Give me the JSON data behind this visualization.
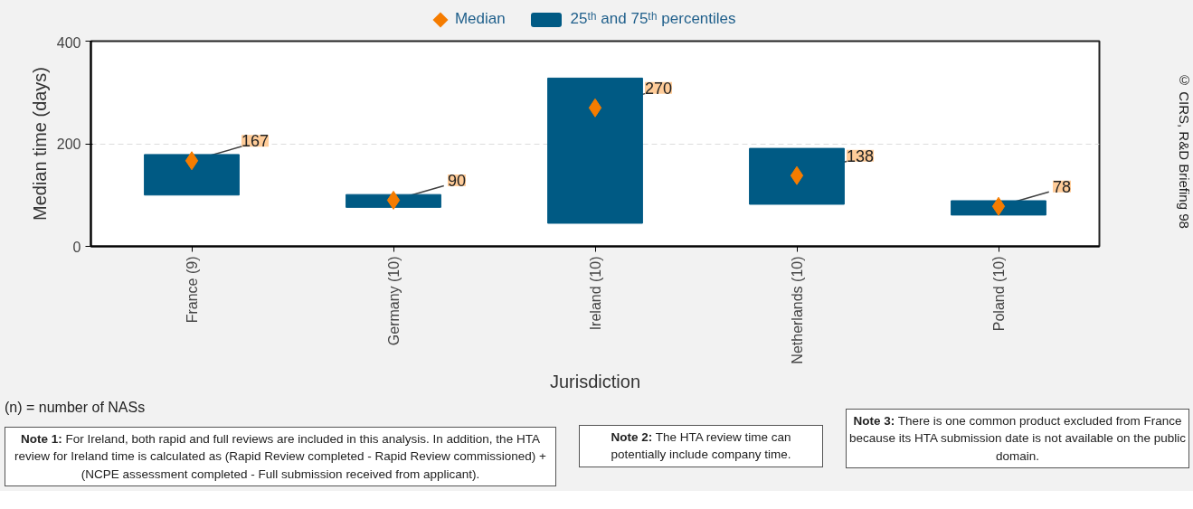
{
  "chart_data": {
    "type": "bar",
    "categories": [
      "France (9)",
      "Germany (10)",
      "Ireland (10)",
      "Netherlands (10)",
      "Poland (10)"
    ],
    "xlabel": "Jurisdiction",
    "ylabel": "Median time (days)",
    "ylim": [
      0,
      400
    ],
    "yticks": [
      0,
      200,
      400
    ],
    "grid": "y",
    "legend": "top",
    "series": [
      {
        "name": "Median",
        "type": "scatter",
        "marker": "diamond",
        "color": "#f57c00",
        "values": [
          167,
          90,
          270,
          138,
          78
        ],
        "data_labels": true
      },
      {
        "name": "25ᵗʰ and 75ᵗʰ percentiles",
        "color": "#005a84",
        "base": [
          100,
          76,
          45,
          82,
          61
        ],
        "values": [
          79,
          25,
          283,
          109,
          28
        ]
      }
    ],
    "annotations": [
      "(n) = number of NASs",
      "Note 1: For Ireland, both rapid and full reviews are included in this analysis. In addition, the HTA review for Ireland time is calculated as (Rapid Review completed - Rapid Review commissioned) + (NCPE assessment completed - Full submission received from applicant).",
      "Note 2: The HTA review time can potentially include company time.",
      "Note 3: There is one common product excluded from France because its HTA submission date is not available on the public domain.",
      "© CIRS, R&D Briefing 98"
    ]
  }
}
